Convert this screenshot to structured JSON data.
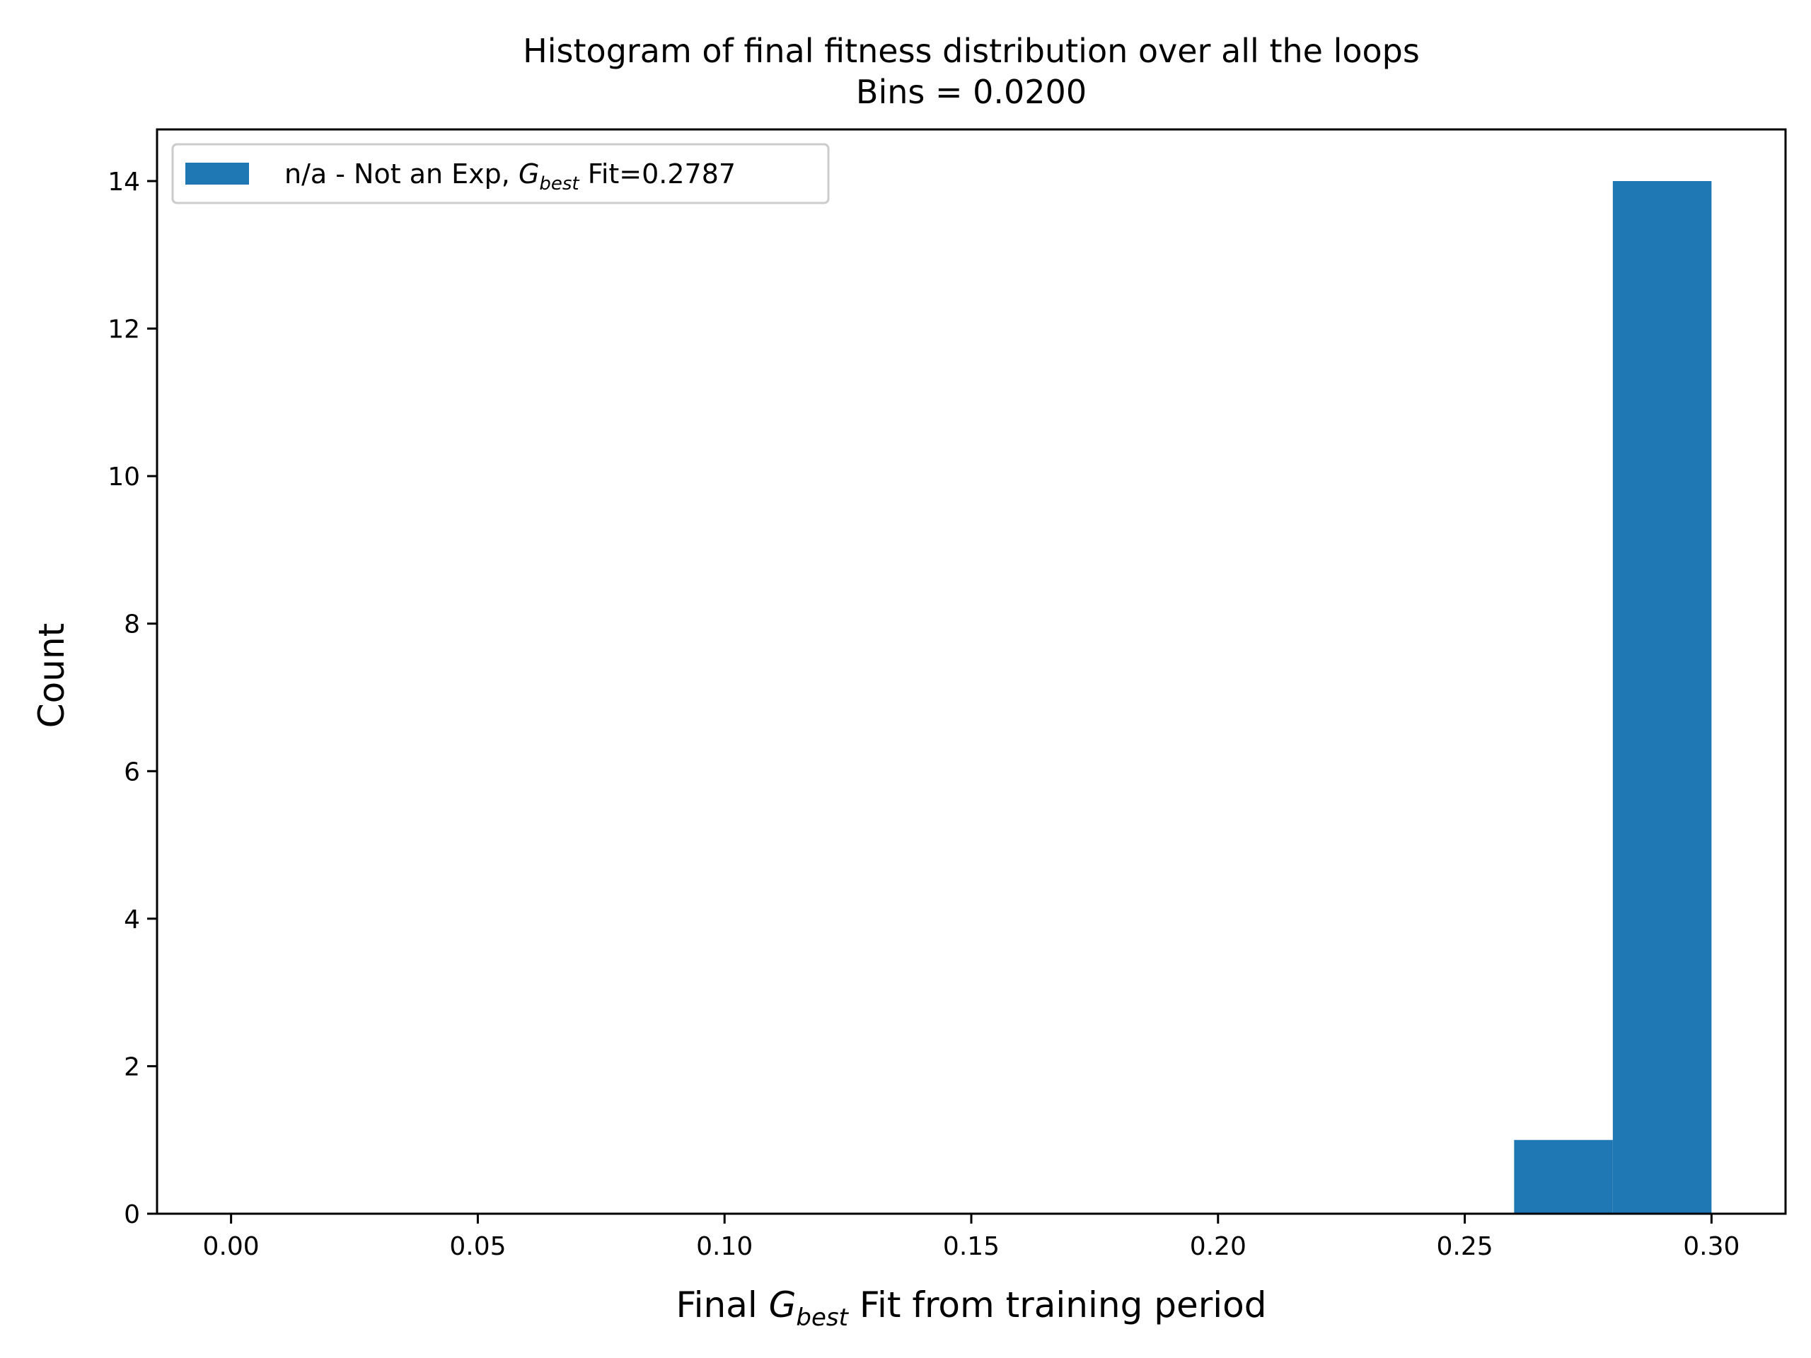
{
  "chart_data": {
    "type": "bar",
    "title": "Histogram of final fitness distribution over all the loops",
    "subtitle": "Bins = 0.0200",
    "xlabel": {
      "prefix": "Final ",
      "symbol": "G",
      "subscript": "best",
      "suffix": " Fit from training period"
    },
    "ylabel": "Count",
    "xlim": [
      -0.015,
      0.315
    ],
    "ylim": [
      0,
      14.7
    ],
    "xticks": [
      0.0,
      0.05,
      0.1,
      0.15,
      0.2,
      0.25,
      0.3
    ],
    "xtick_labels": [
      "0.00",
      "0.05",
      "0.10",
      "0.15",
      "0.20",
      "0.25",
      "0.30"
    ],
    "yticks": [
      0,
      2,
      4,
      6,
      8,
      10,
      12,
      14
    ],
    "ytick_labels": [
      "0",
      "2",
      "4",
      "6",
      "8",
      "10",
      "12",
      "14"
    ],
    "bin_width": 0.02,
    "series": [
      {
        "name": {
          "prefix": "n/a - Not an Exp, ",
          "symbol": "G",
          "subscript": "best",
          "suffix": " Fit=0.2787"
        },
        "color": "#1f77b4",
        "bins": [
          {
            "x0": 0.26,
            "x1": 0.28,
            "count": 1
          },
          {
            "x0": 0.28,
            "x1": 0.3,
            "count": 14
          }
        ]
      }
    ],
    "legend_position": "upper-left",
    "grid": false
  }
}
